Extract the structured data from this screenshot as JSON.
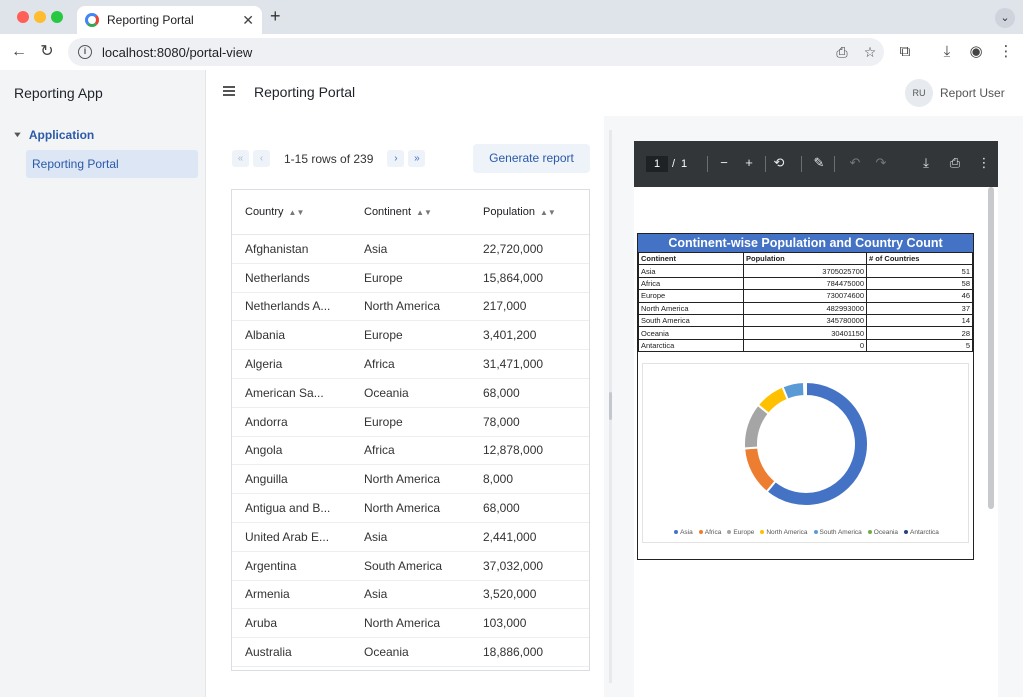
{
  "browser": {
    "tab_title": "Reporting Portal",
    "url": "localhost:8080/portal-view"
  },
  "sidebar": {
    "app_title": "Reporting App",
    "group_label": "Application",
    "items": [
      {
        "label": "Reporting Portal"
      }
    ]
  },
  "header": {
    "title": "Reporting Portal",
    "avatar_initials": "RU",
    "user_name": "Report User"
  },
  "pager": {
    "range_text": "1-15 rows of 239",
    "generate_label": "Generate report"
  },
  "grid": {
    "columns": [
      "Country",
      "Continent",
      "Population"
    ],
    "rows": [
      [
        "Afghanistan",
        "Asia",
        "22,720,000"
      ],
      [
        "Netherlands",
        "Europe",
        "15,864,000"
      ],
      [
        "Netherlands A...",
        "North America",
        "217,000"
      ],
      [
        "Albania",
        "Europe",
        "3,401,200"
      ],
      [
        "Algeria",
        "Africa",
        "31,471,000"
      ],
      [
        "American Sa...",
        "Oceania",
        "68,000"
      ],
      [
        "Andorra",
        "Europe",
        "78,000"
      ],
      [
        "Angola",
        "Africa",
        "12,878,000"
      ],
      [
        "Anguilla",
        "North America",
        "8,000"
      ],
      [
        "Antigua and B...",
        "North America",
        "68,000"
      ],
      [
        "United Arab E...",
        "Asia",
        "2,441,000"
      ],
      [
        "Argentina",
        "South America",
        "37,032,000"
      ],
      [
        "Armenia",
        "Asia",
        "3,520,000"
      ],
      [
        "Aruba",
        "North America",
        "103,000"
      ],
      [
        "Australia",
        "Oceania",
        "18,886,000"
      ]
    ]
  },
  "pdf": {
    "page_current": "1",
    "page_total": "1",
    "report_title": "Continent-wise Population and Country Count",
    "table_headers": [
      "Continent",
      "Population",
      "# of Countries"
    ],
    "table_rows": [
      [
        "Asia",
        "3705025700",
        "51"
      ],
      [
        "Africa",
        "784475000",
        "58"
      ],
      [
        "Europe",
        "730074600",
        "46"
      ],
      [
        "North America",
        "482993000",
        "37"
      ],
      [
        "South America",
        "345780000",
        "14"
      ],
      [
        "Oceania",
        "30401150",
        "28"
      ],
      [
        "Antarctica",
        "0",
        "5"
      ]
    ]
  },
  "chart_data": {
    "type": "pie",
    "categories": [
      "Asia",
      "Africa",
      "Europe",
      "North America",
      "South America",
      "Oceania",
      "Antarctica"
    ],
    "values": [
      3705025700,
      784475000,
      730074600,
      482993000,
      345780000,
      30401150,
      0
    ],
    "colors": [
      "#4472c4",
      "#ed7d31",
      "#a5a5a5",
      "#ffc000",
      "#5b9bd5",
      "#70ad47",
      "#264478"
    ],
    "legend": "bottom",
    "donut": true
  }
}
